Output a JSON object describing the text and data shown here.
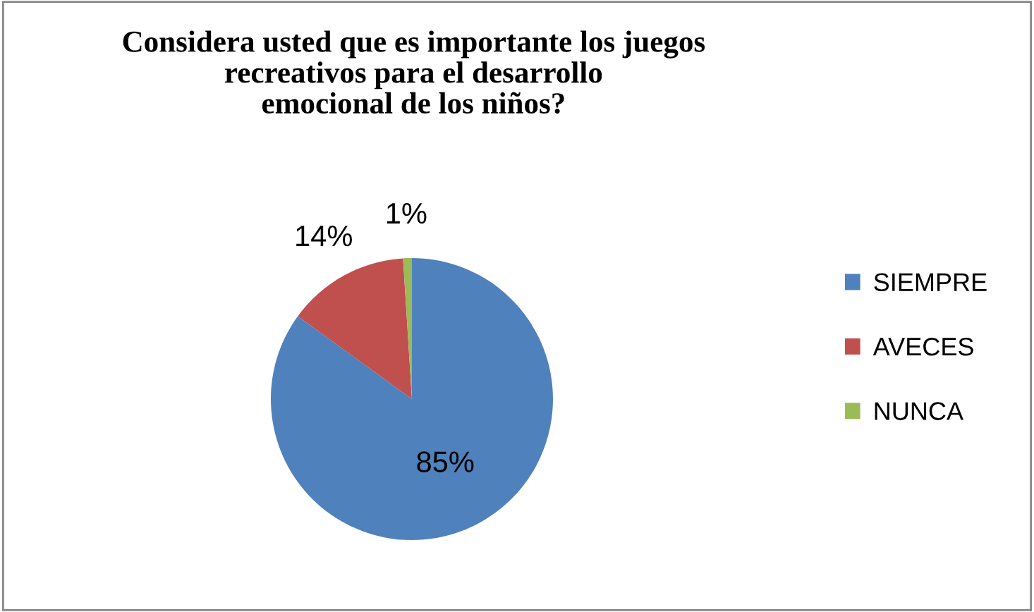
{
  "chart_data": {
    "type": "pie",
    "title": "Considera usted que es importante los juegos\nrecreativos para el desarrollo\nemocional de los niños?",
    "categories": [
      "SIEMPRE",
      "AVECES",
      "NUNCA"
    ],
    "values": [
      85,
      14,
      1
    ],
    "colors": [
      "#4f81bd",
      "#c0504d",
      "#9bbb59"
    ],
    "value_labels": [
      "85%",
      "14%",
      "1%"
    ],
    "legend": "right"
  }
}
